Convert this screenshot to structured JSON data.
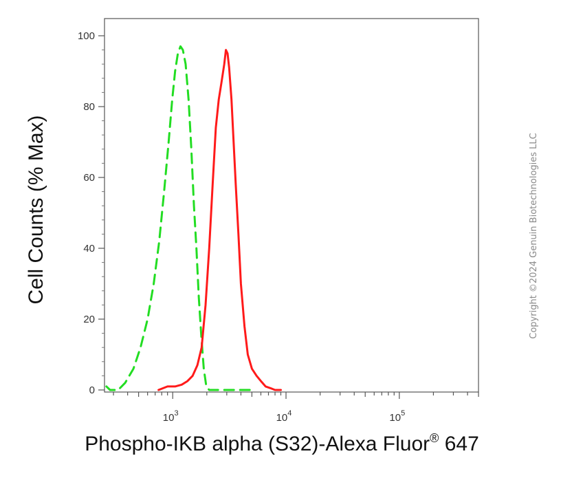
{
  "chart_data": {
    "type": "line",
    "title": "",
    "xlabel": "Phospho-IKB alpha (S32)-Alexa Fluor",
    "xlabel_superscript": "®",
    "xlabel_suffix": " 647",
    "ylabel": "Cell Counts (% Max)",
    "x_scale": "log",
    "xlim": [
      250,
      500000
    ],
    "ylim": [
      0,
      100
    ],
    "x_ticks": [
      {
        "value": 1000,
        "base": "10",
        "exp": "3"
      },
      {
        "value": 10000,
        "base": "10",
        "exp": "4"
      },
      {
        "value": 100000,
        "base": "10",
        "exp": "5"
      }
    ],
    "y_ticks": [
      0,
      20,
      40,
      60,
      80,
      100
    ],
    "grid": false,
    "legend": "none",
    "series": [
      {
        "color": "#22dd22",
        "style": "dashed",
        "points": [
          [
            260,
            1
          ],
          [
            280,
            0
          ],
          [
            330,
            0
          ],
          [
            380,
            2
          ],
          [
            450,
            6
          ],
          [
            520,
            12
          ],
          [
            600,
            20
          ],
          [
            680,
            30
          ],
          [
            760,
            42
          ],
          [
            840,
            56
          ],
          [
            920,
            70
          ],
          [
            990,
            82
          ],
          [
            1050,
            90
          ],
          [
            1110,
            95
          ],
          [
            1170,
            97
          ],
          [
            1230,
            96
          ],
          [
            1300,
            92
          ],
          [
            1380,
            82
          ],
          [
            1460,
            68
          ],
          [
            1540,
            52
          ],
          [
            1620,
            40
          ],
          [
            1700,
            26
          ],
          [
            1790,
            15
          ],
          [
            1880,
            6
          ],
          [
            1980,
            1
          ],
          [
            2100,
            0
          ],
          [
            5000,
            0
          ]
        ]
      },
      {
        "color": "#ff1a1a",
        "style": "solid",
        "points": [
          [
            750,
            0
          ],
          [
            900,
            1
          ],
          [
            1050,
            1
          ],
          [
            1200,
            1.5
          ],
          [
            1350,
            2.5
          ],
          [
            1500,
            4
          ],
          [
            1650,
            7
          ],
          [
            1800,
            12
          ],
          [
            1950,
            24
          ],
          [
            2100,
            40
          ],
          [
            2250,
            58
          ],
          [
            2400,
            74
          ],
          [
            2550,
            82
          ],
          [
            2700,
            87
          ],
          [
            2850,
            92
          ],
          [
            2950,
            96
          ],
          [
            3050,
            95
          ],
          [
            3150,
            91
          ],
          [
            3300,
            82
          ],
          [
            3450,
            70
          ],
          [
            3600,
            58
          ],
          [
            3800,
            44
          ],
          [
            4000,
            30
          ],
          [
            4300,
            18
          ],
          [
            4600,
            10
          ],
          [
            5000,
            6
          ],
          [
            5500,
            4
          ],
          [
            6000,
            2.5
          ],
          [
            6600,
            1
          ],
          [
            7300,
            0.5
          ],
          [
            8000,
            0
          ],
          [
            9000,
            0
          ]
        ]
      }
    ]
  },
  "watermark": "Copyright ©2024 Genuin Biotechnologies LLC"
}
